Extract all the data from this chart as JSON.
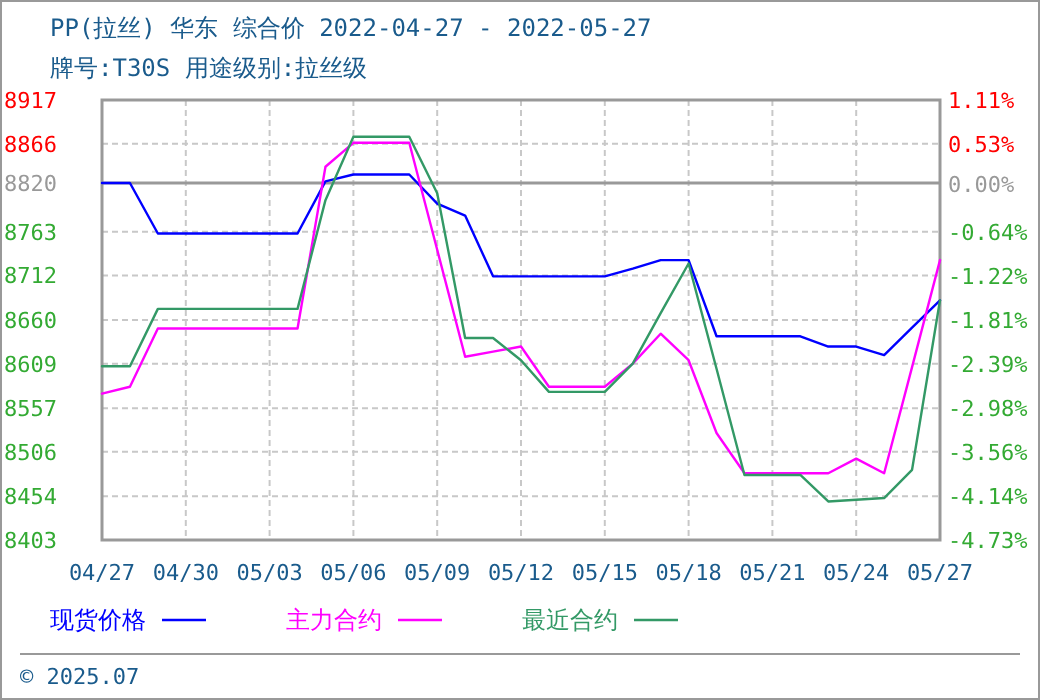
{
  "chart_data": {
    "type": "line",
    "title": "PP(拉丝) 华东 综合价 2022-04-27 - 2022-05-27",
    "subtitle": "牌号:T30S 用途级别:拉丝级",
    "x": [
      "2022-04-27",
      "2022-04-28",
      "2022-04-29",
      "2022-04-30",
      "2022-05-01",
      "2022-05-02",
      "2022-05-03",
      "2022-05-04",
      "2022-05-05",
      "2022-05-06",
      "2022-05-07",
      "2022-05-08",
      "2022-05-09",
      "2022-05-10",
      "2022-05-11",
      "2022-05-12",
      "2022-05-13",
      "2022-05-14",
      "2022-05-15",
      "2022-05-16",
      "2022-05-17",
      "2022-05-18",
      "2022-05-19",
      "2022-05-20",
      "2022-05-21",
      "2022-05-22",
      "2022-05-23",
      "2022-05-24",
      "2022-05-25",
      "2022-05-26",
      "2022-05-27"
    ],
    "series": [
      {
        "name": "现货价格",
        "color": "#0000ff",
        "values": [
          8820,
          8820,
          8761,
          8761,
          8761,
          8761,
          8761,
          8761,
          8822,
          8830,
          8830,
          8830,
          8796,
          8782,
          8711,
          8711,
          8711,
          8711,
          8711,
          8720,
          8730,
          8730,
          8641,
          8641,
          8641,
          8641,
          8629,
          8629,
          8619,
          8651,
          8683
        ]
      },
      {
        "name": "主力合约",
        "color": "#ff00ff",
        "values": [
          8574,
          8582,
          8650,
          8650,
          8650,
          8650,
          8650,
          8650,
          8839,
          8867,
          8867,
          8867,
          8742,
          8617,
          8623,
          8629,
          8582,
          8582,
          8582,
          8609,
          8644,
          8613,
          8528,
          8481,
          8481,
          8481,
          8481,
          8498,
          8481,
          8605,
          8730
        ]
      },
      {
        "name": "最近合约",
        "color": "#339966",
        "values": [
          8606,
          8606,
          8673,
          8673,
          8673,
          8673,
          8673,
          8673,
          8800,
          8874,
          8874,
          8874,
          8808,
          8639,
          8639,
          8613,
          8576,
          8576,
          8576,
          8609,
          8668,
          8726,
          8603,
          8479,
          8479,
          8479,
          8448,
          8450,
          8452,
          8485,
          8683
        ]
      }
    ],
    "xlim": [
      "2022-04-27",
      "2022-05-27"
    ],
    "xticks": [
      {
        "value": "2022-04-27",
        "label": "04/27"
      },
      {
        "value": "2022-04-30",
        "label": "04/30"
      },
      {
        "value": "2022-05-03",
        "label": "05/03"
      },
      {
        "value": "2022-05-06",
        "label": "05/06"
      },
      {
        "value": "2022-05-09",
        "label": "05/09"
      },
      {
        "value": "2022-05-12",
        "label": "05/12"
      },
      {
        "value": "2022-05-15",
        "label": "05/15"
      },
      {
        "value": "2022-05-18",
        "label": "05/18"
      },
      {
        "value": "2022-05-21",
        "label": "05/21"
      },
      {
        "value": "2022-05-24",
        "label": "05/24"
      },
      {
        "value": "2022-05-27",
        "label": "05/27"
      }
    ],
    "ylim": [
      8403,
      8917
    ],
    "yticks": [
      8917,
      8866,
      8820,
      8763,
      8712,
      8660,
      8609,
      8557,
      8506,
      8454,
      8403
    ],
    "y2lim": [
      -4.73,
      1.11
    ],
    "y2ticks": [
      {
        "value": 1.11,
        "label": "1.11%"
      },
      {
        "value": 0.53,
        "label": "0.53%"
      },
      {
        "value": 0,
        "label": "0.00%"
      },
      {
        "value": -0.64,
        "label": "-0.64%"
      },
      {
        "value": -1.22,
        "label": "-1.22%"
      },
      {
        "value": -1.81,
        "label": "-1.81%"
      },
      {
        "value": -2.39,
        "label": "-2.39%"
      },
      {
        "value": -2.98,
        "label": "-2.98%"
      },
      {
        "value": -3.56,
        "label": "-3.56%"
      },
      {
        "value": -4.14,
        "label": "-4.14%"
      },
      {
        "value": -4.73,
        "label": "-4.73%"
      }
    ],
    "ref_lines": [
      {
        "axis": "y",
        "value": 8820,
        "color": "#999999"
      }
    ],
    "grid": true,
    "legend": "bottom",
    "marker": "none",
    "line_style": "solid",
    "annotations": [
      "© 2025.07"
    ]
  }
}
